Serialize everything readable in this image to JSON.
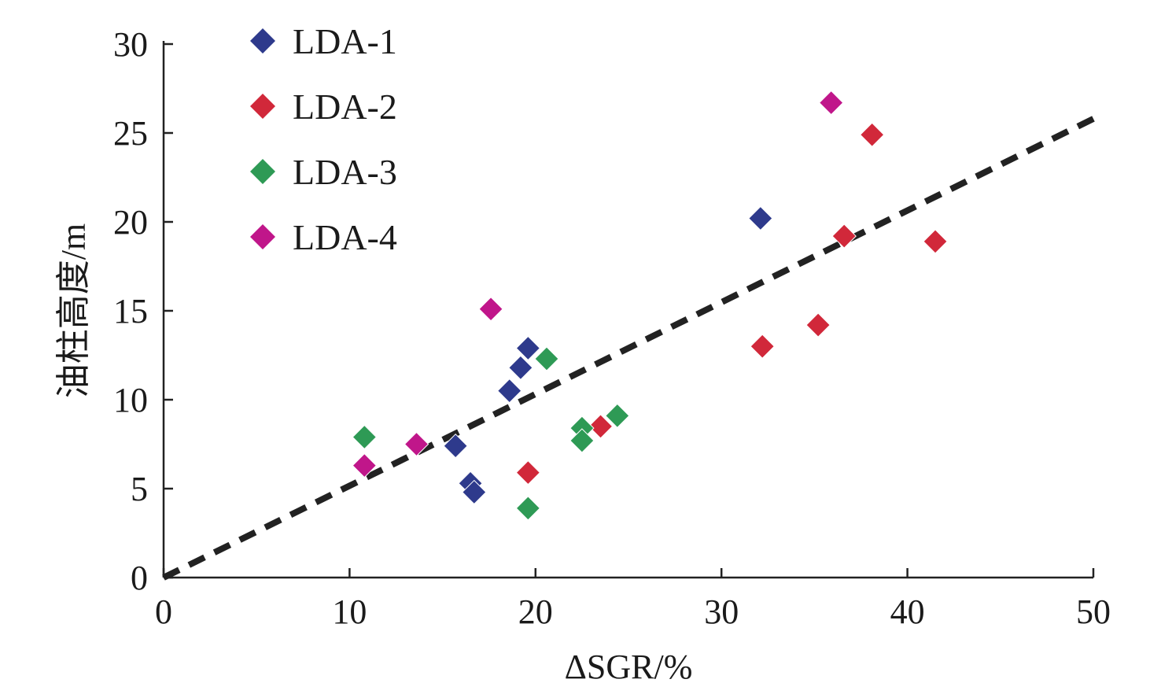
{
  "chart_data": {
    "type": "scatter",
    "xlabel": "ΔSGR/%",
    "ylabel": "油柱高度/m",
    "xlim": [
      0,
      50
    ],
    "ylim": [
      0,
      30
    ],
    "xticks": [
      "0",
      "10",
      "20",
      "30",
      "40",
      "50"
    ],
    "yticks": [
      "0",
      "5",
      "10",
      "15",
      "20",
      "25",
      "30"
    ],
    "grid": false,
    "legend_position": "top-left",
    "series": [
      {
        "name": "LDA-1",
        "color": "#2e3a8c",
        "points": [
          [
            15.7,
            7.4
          ],
          [
            16.5,
            5.3
          ],
          [
            16.7,
            4.8
          ],
          [
            18.6,
            10.5
          ],
          [
            19.2,
            11.8
          ],
          [
            19.6,
            12.9
          ],
          [
            32.1,
            20.2
          ]
        ]
      },
      {
        "name": "LDA-2",
        "color": "#d1283a",
        "points": [
          [
            19.6,
            5.9
          ],
          [
            23.5,
            8.5
          ],
          [
            32.2,
            13.0
          ],
          [
            35.2,
            14.2
          ],
          [
            36.6,
            19.2
          ],
          [
            38.1,
            24.9
          ],
          [
            41.5,
            18.9
          ]
        ]
      },
      {
        "name": "LDA-3",
        "color": "#2e9a55",
        "points": [
          [
            10.8,
            7.9
          ],
          [
            19.6,
            3.9
          ],
          [
            20.6,
            12.3
          ],
          [
            22.5,
            8.4
          ],
          [
            22.5,
            7.7
          ],
          [
            24.4,
            9.1
          ]
        ]
      },
      {
        "name": "LDA-4",
        "color": "#c0168a",
        "points": [
          [
            10.8,
            6.3
          ],
          [
            13.6,
            7.5
          ],
          [
            17.6,
            15.1
          ],
          [
            35.9,
            26.7
          ]
        ]
      }
    ],
    "trendline": {
      "style": "dashed",
      "color": "#222222",
      "points": [
        [
          0,
          0
        ],
        [
          50,
          25.8
        ]
      ]
    }
  }
}
